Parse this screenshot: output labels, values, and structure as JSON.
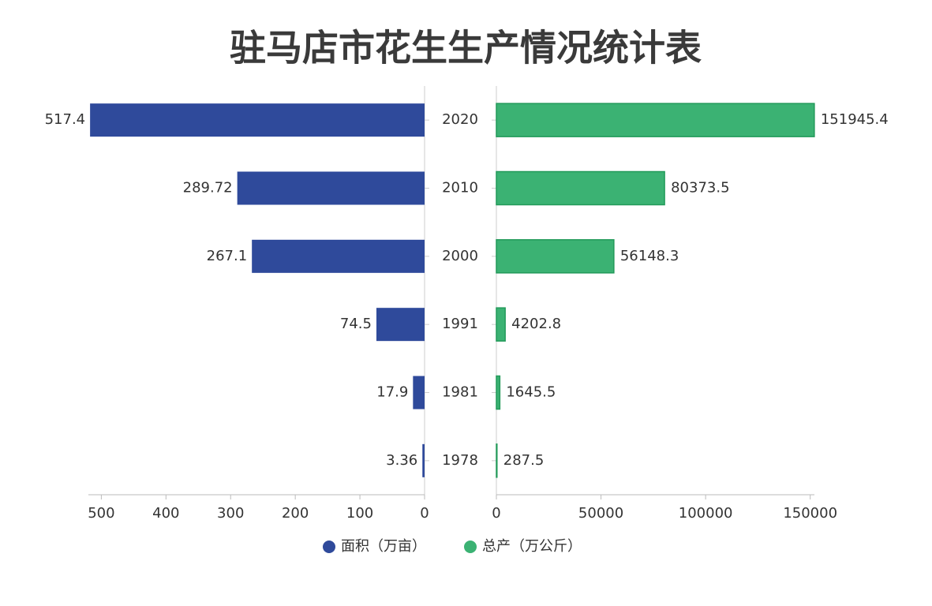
{
  "chart_data": {
    "type": "butterfly",
    "title": "驻马店市花生生产情况统计表",
    "categories": [
      "2020",
      "2010",
      "2000",
      "1991",
      "1981",
      "1978"
    ],
    "series": [
      {
        "name": "面积（万亩）",
        "color": "#2f4a9b",
        "values": [
          517.4,
          289.72,
          267.1,
          74.5,
          17.9,
          3.36
        ],
        "axis": "x"
      },
      {
        "name": "总产（万公斤）",
        "color": "#3bb273",
        "values": [
          151945.4,
          80373.5,
          56148.3,
          4202.8,
          1645.5,
          287.5
        ],
        "axis": "x2"
      }
    ],
    "xlim": [
      0,
      520
    ],
    "xticks": [
      0,
      100,
      200,
      300,
      400,
      500
    ],
    "x2lim": [
      0,
      152000
    ],
    "x2ticks": [
      0,
      50000,
      100000,
      150000
    ]
  }
}
